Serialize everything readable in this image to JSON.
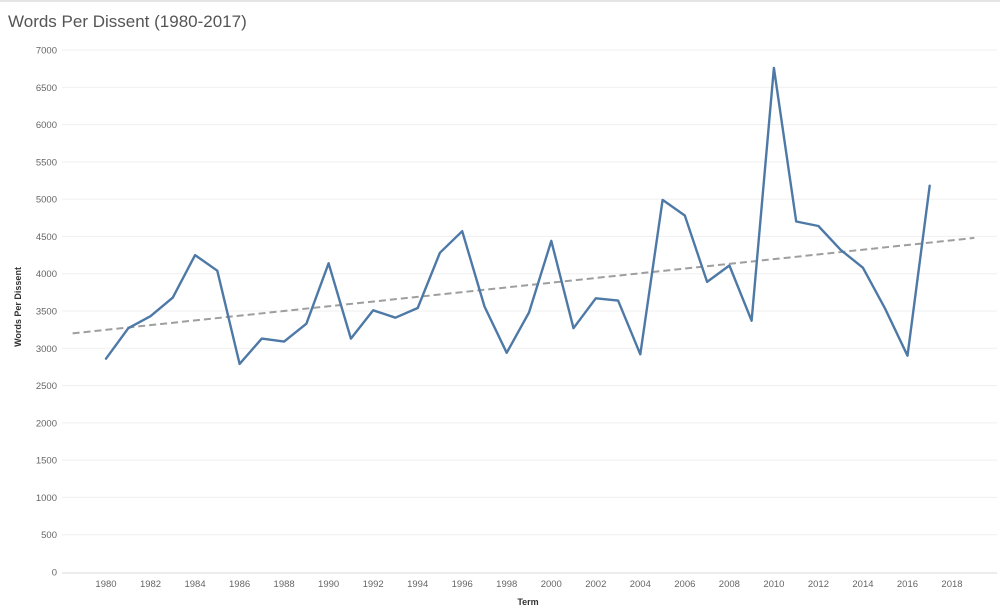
{
  "title": "Words Per Dissent (1980-2017)",
  "colors": {
    "line": "#4e79a7",
    "trend": "#9e9e9e",
    "grid": "#efefef"
  },
  "chart_data": {
    "type": "line",
    "title": "Words Per Dissent (1980-2017)",
    "xlabel": "Term",
    "ylabel": "Words Per Dissent",
    "xlim": [
      1978.5,
      2019
    ],
    "ylim": [
      0,
      7000
    ],
    "x_ticks": [
      1980,
      1982,
      1984,
      1986,
      1988,
      1990,
      1992,
      1994,
      1996,
      1998,
      2000,
      2002,
      2004,
      2006,
      2008,
      2010,
      2012,
      2014,
      2016,
      2018
    ],
    "y_ticks": [
      0,
      500,
      1000,
      1500,
      2000,
      2500,
      3000,
      3500,
      4000,
      4500,
      5000,
      5500,
      6000,
      6500,
      7000
    ],
    "grid": "horizontal",
    "series": [
      {
        "x": [
          1980,
          1981,
          1982,
          1983,
          1984,
          1985,
          1986,
          1987,
          1988,
          1989,
          1990,
          1991,
          1992,
          1993,
          1994,
          1995,
          1996,
          1997,
          1998,
          1999,
          2000,
          2001,
          2002,
          2003,
          2004,
          2005,
          2006,
          2007,
          2008,
          2009,
          2010,
          2011,
          2012,
          2013,
          2014,
          2015,
          2016,
          2017
        ],
        "values": [
          2860,
          3270,
          3430,
          3680,
          4250,
          4040,
          2790,
          3130,
          3090,
          3330,
          4140,
          3130,
          3510,
          3410,
          3540,
          4280,
          4570,
          3560,
          2940,
          3480,
          4440,
          3270,
          3670,
          3640,
          2920,
          4990,
          4780,
          3890,
          4110,
          3370,
          6760,
          4700,
          4640,
          4320,
          4080,
          3530,
          2900,
          5180
        ]
      }
    ],
    "trend_line": {
      "style": "dashed",
      "x": [
        1978.5,
        2019
      ],
      "values": [
        3200,
        4480
      ]
    }
  }
}
